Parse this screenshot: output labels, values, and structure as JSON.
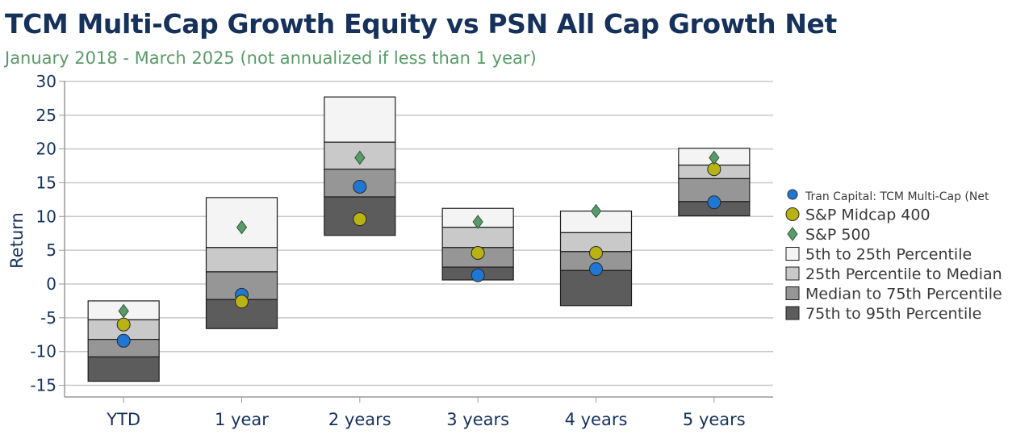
{
  "title": "TCM Multi-Cap Growth Equity vs PSN All Cap Growth Net",
  "subtitle": "January 2018 - March 2025 (not annualized if less than 1 year)",
  "chart_data": {
    "type": "floating-bar",
    "ylabel": "Return",
    "xlabel": "",
    "ylim": [
      -15,
      30
    ],
    "yticks": [
      30,
      25,
      20,
      15,
      10,
      5,
      0,
      -5,
      -10,
      -15
    ],
    "grid": true,
    "legend_position": "right",
    "categories": [
      "YTD",
      "1 year",
      "2 years",
      "3 years",
      "4 years",
      "5 years"
    ],
    "percentile_ranges": [
      {
        "name": "5th to 25th Percentile",
        "color": "#f4f4f4",
        "values": [
          [
            -2.5,
            -5.3
          ],
          [
            12.8,
            5.4
          ],
          [
            27.7,
            21.0
          ],
          [
            11.2,
            8.4
          ],
          [
            10.8,
            7.6
          ],
          [
            20.1,
            17.6
          ]
        ]
      },
      {
        "name": "25th Percentile to Median",
        "color": "#c9c9c9",
        "values": [
          [
            -5.3,
            -8.2
          ],
          [
            5.4,
            1.8
          ],
          [
            21.0,
            17.0
          ],
          [
            8.4,
            5.4
          ],
          [
            7.6,
            4.8
          ],
          [
            17.6,
            15.6
          ]
        ]
      },
      {
        "name": "Median to 75th Percentile",
        "color": "#969696",
        "values": [
          [
            -8.2,
            -10.8
          ],
          [
            1.8,
            -2.3
          ],
          [
            17.0,
            12.9
          ],
          [
            5.4,
            2.5
          ],
          [
            4.8,
            2.0
          ],
          [
            15.6,
            12.2
          ]
        ]
      },
      {
        "name": "75th to 95th Percentile",
        "color": "#5c5c5c",
        "values": [
          [
            -10.8,
            -14.4
          ],
          [
            -2.3,
            -6.6
          ],
          [
            12.9,
            7.2
          ],
          [
            2.5,
            0.6
          ],
          [
            2.0,
            -3.2
          ],
          [
            12.2,
            10.1
          ]
        ]
      }
    ],
    "series": [
      {
        "name": "Tran Capital: TCM Multi-Cap (Net)",
        "legend_label": "Tran Capital: TCM Multi-Cap (Net",
        "marker": "circle",
        "color": "#1f77d4",
        "values": [
          -8.4,
          -1.6,
          14.4,
          1.3,
          2.2,
          12.1
        ]
      },
      {
        "name": "S&P Midcap 400",
        "marker": "circle",
        "color": "#b8b312",
        "values": [
          -6.0,
          -2.6,
          9.6,
          4.6,
          4.6,
          17.0
        ]
      },
      {
        "name": "S&P 500",
        "marker": "diamond",
        "color": "#5a9a6a",
        "values": [
          -4.0,
          8.4,
          18.7,
          9.2,
          10.8,
          18.7
        ]
      }
    ]
  }
}
